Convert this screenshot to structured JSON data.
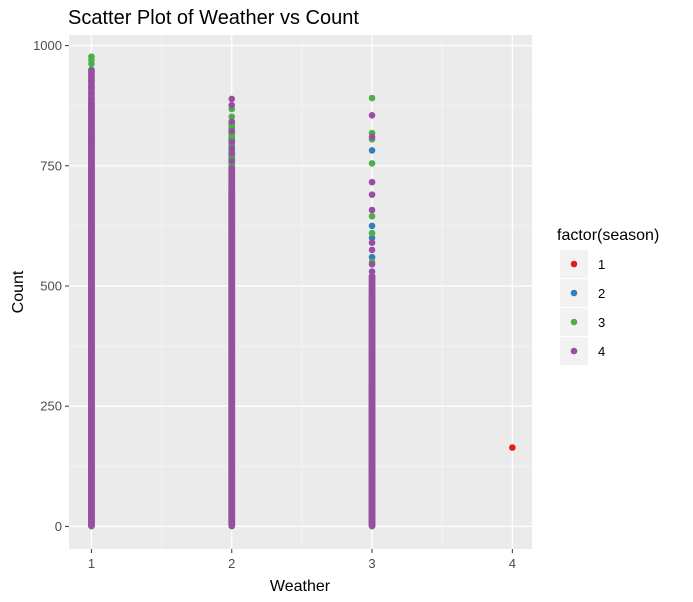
{
  "chart_data": {
    "type": "scatter",
    "title": "Scatter Plot of Weather vs Count",
    "xlabel": "Weather",
    "ylabel": "Count",
    "xlim": [
      0.84,
      4.14
    ],
    "ylim": [
      -47,
      1022
    ],
    "x_ticks": [
      1,
      2,
      3,
      4
    ],
    "x_tick_labels": [
      "1",
      "2",
      "3",
      "4"
    ],
    "y_ticks": [
      0,
      250,
      500,
      750,
      1000
    ],
    "y_tick_labels": [
      "0",
      "250",
      "500",
      "750",
      "1000"
    ],
    "grid": true,
    "legend": {
      "title": "factor(season)",
      "position": "right",
      "entries": [
        {
          "label": "1",
          "color": "#e41a1c"
        },
        {
          "label": "2",
          "color": "#377eb8"
        },
        {
          "label": "3",
          "color": "#4daf4a"
        },
        {
          "label": "4",
          "color": "#984ea3"
        }
      ]
    },
    "series": [
      {
        "name": "1",
        "color": "#e41a1c",
        "bands": [
          {
            "x": 1,
            "from": 1,
            "to": 750
          },
          {
            "x": 2,
            "from": 1,
            "to": 700
          },
          {
            "x": 3,
            "from": 1,
            "to": 300
          }
        ],
        "points": [
          {
            "x": 3,
            "y": 520
          },
          {
            "x": 3,
            "y": 350
          },
          {
            "x": 4,
            "y": 164
          }
        ]
      },
      {
        "name": "2",
        "color": "#377eb8",
        "bands": [
          {
            "x": 1,
            "from": 1,
            "to": 820
          },
          {
            "x": 2,
            "from": 1,
            "to": 780
          },
          {
            "x": 3,
            "from": 1,
            "to": 480
          }
        ],
        "points": [
          {
            "x": 3,
            "y": 782
          },
          {
            "x": 3,
            "y": 625
          },
          {
            "x": 3,
            "y": 600
          },
          {
            "x": 3,
            "y": 560
          }
        ]
      },
      {
        "name": "3",
        "color": "#4daf4a",
        "bands": [
          {
            "x": 1,
            "from": 1,
            "to": 880
          },
          {
            "x": 2,
            "from": 1,
            "to": 840
          },
          {
            "x": 3,
            "from": 1,
            "to": 520
          }
        ],
        "points": [
          {
            "x": 1,
            "y": 977
          },
          {
            "x": 1,
            "y": 970
          },
          {
            "x": 1,
            "y": 962
          },
          {
            "x": 1,
            "y": 950
          },
          {
            "x": 1,
            "y": 900
          },
          {
            "x": 1,
            "y": 870
          },
          {
            "x": 1,
            "y": 855
          },
          {
            "x": 1,
            "y": 845
          },
          {
            "x": 1,
            "y": 832
          },
          {
            "x": 1,
            "y": 770
          },
          {
            "x": 1,
            "y": 712
          },
          {
            "x": 2,
            "y": 868
          },
          {
            "x": 2,
            "y": 852
          },
          {
            "x": 2,
            "y": 832
          },
          {
            "x": 2,
            "y": 812
          },
          {
            "x": 2,
            "y": 770
          },
          {
            "x": 2,
            "y": 722
          },
          {
            "x": 2,
            "y": 640
          },
          {
            "x": 2,
            "y": 560
          },
          {
            "x": 2,
            "y": 430
          },
          {
            "x": 3,
            "y": 891
          },
          {
            "x": 3,
            "y": 818
          },
          {
            "x": 3,
            "y": 805
          },
          {
            "x": 3,
            "y": 755
          },
          {
            "x": 3,
            "y": 645
          },
          {
            "x": 3,
            "y": 610
          },
          {
            "x": 3,
            "y": 550
          },
          {
            "x": 3,
            "y": 490
          },
          {
            "x": 3,
            "y": 470
          },
          {
            "x": 3,
            "y": 420
          },
          {
            "x": 3,
            "y": 410
          },
          {
            "x": 3,
            "y": 398
          },
          {
            "x": 3,
            "y": 380
          },
          {
            "x": 3,
            "y": 280
          },
          {
            "x": 3,
            "y": 270
          },
          {
            "x": 3,
            "y": 190
          }
        ]
      },
      {
        "name": "4",
        "color": "#984ea3",
        "bands": [
          {
            "x": 1,
            "from": 1,
            "to": 945
          },
          {
            "x": 2,
            "from": 1,
            "to": 745
          },
          {
            "x": 3,
            "from": 1,
            "to": 520
          }
        ],
        "points": [
          {
            "x": 1,
            "y": 948
          },
          {
            "x": 1,
            "y": 940
          },
          {
            "x": 1,
            "y": 926
          },
          {
            "x": 1,
            "y": 912
          },
          {
            "x": 1,
            "y": 890
          },
          {
            "x": 1,
            "y": 880
          },
          {
            "x": 1,
            "y": 866
          },
          {
            "x": 1,
            "y": 858
          },
          {
            "x": 1,
            "y": 822
          },
          {
            "x": 1,
            "y": 812
          },
          {
            "x": 1,
            "y": 800
          },
          {
            "x": 1,
            "y": 790
          },
          {
            "x": 2,
            "y": 889
          },
          {
            "x": 2,
            "y": 876
          },
          {
            "x": 2,
            "y": 842
          },
          {
            "x": 2,
            "y": 822
          },
          {
            "x": 2,
            "y": 800
          },
          {
            "x": 2,
            "y": 786
          },
          {
            "x": 2,
            "y": 776
          },
          {
            "x": 2,
            "y": 760
          },
          {
            "x": 3,
            "y": 855
          },
          {
            "x": 3,
            "y": 810
          },
          {
            "x": 3,
            "y": 716
          },
          {
            "x": 3,
            "y": 690
          },
          {
            "x": 3,
            "y": 658
          },
          {
            "x": 3,
            "y": 590
          },
          {
            "x": 3,
            "y": 575
          },
          {
            "x": 3,
            "y": 545
          },
          {
            "x": 3,
            "y": 530
          },
          {
            "x": 3,
            "y": 460
          },
          {
            "x": 3,
            "y": 440
          },
          {
            "x": 3,
            "y": 426
          },
          {
            "x": 3,
            "y": 390
          },
          {
            "x": 3,
            "y": 360
          }
        ]
      }
    ]
  }
}
